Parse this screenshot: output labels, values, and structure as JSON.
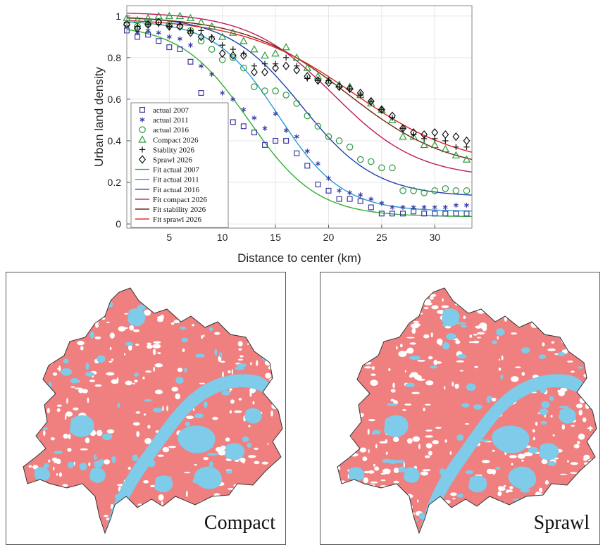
{
  "chart_data": {
    "type": "scatter",
    "xlabel": "Distance to center (km)",
    "ylabel": "Urban land density",
    "xlim": [
      1,
      33.5
    ],
    "ylim": [
      -0.02,
      1.05
    ],
    "xticks": [
      5,
      10,
      15,
      20,
      25,
      30
    ],
    "yticks": [
      0,
      0.2,
      0.4,
      0.6,
      0.8,
      1
    ],
    "grid": true,
    "legend_position": "bottom-left",
    "series": [
      {
        "name": "actual 2007",
        "kind": "points",
        "marker": "square",
        "color": "#3a3aa0",
        "x": [
          1,
          2,
          3,
          4,
          5,
          6,
          7,
          8,
          9,
          10,
          11,
          12,
          13,
          14,
          15,
          16,
          17,
          18,
          19,
          20,
          21,
          22,
          23,
          24,
          25,
          26,
          27,
          28,
          29,
          30,
          31,
          32,
          33
        ],
        "y": [
          0.93,
          0.9,
          0.91,
          0.88,
          0.85,
          0.84,
          0.78,
          0.63,
          0.56,
          0.5,
          0.49,
          0.47,
          0.44,
          0.38,
          0.4,
          0.4,
          0.34,
          0.28,
          0.19,
          0.16,
          0.12,
          0.12,
          0.11,
          0.08,
          0.05,
          0.05,
          0.05,
          0.06,
          0.05,
          0.05,
          0.05,
          0.05,
          0.05
        ]
      },
      {
        "name": "actual 2011",
        "kind": "points",
        "marker": "asterisk",
        "color": "#3a3aa0",
        "x": [
          1,
          2,
          3,
          4,
          5,
          6,
          7,
          8,
          9,
          10,
          11,
          12,
          13,
          14,
          15,
          16,
          17,
          18,
          19,
          20,
          21,
          22,
          23,
          24,
          25,
          26,
          27,
          28,
          29,
          30,
          31,
          32,
          33
        ],
        "y": [
          0.95,
          0.92,
          0.93,
          0.92,
          0.9,
          0.89,
          0.86,
          0.76,
          0.72,
          0.63,
          0.6,
          0.55,
          0.51,
          0.46,
          0.53,
          0.45,
          0.42,
          0.35,
          0.29,
          0.22,
          0.16,
          0.15,
          0.14,
          0.12,
          0.1,
          0.08,
          0.08,
          0.08,
          0.08,
          0.08,
          0.08,
          0.09,
          0.09
        ]
      },
      {
        "name": "actual 2016",
        "kind": "points",
        "marker": "circle",
        "color": "#2a9a3a",
        "x": [
          1,
          2,
          3,
          4,
          5,
          6,
          7,
          8,
          9,
          10,
          11,
          12,
          13,
          14,
          15,
          16,
          17,
          18,
          19,
          20,
          21,
          22,
          23,
          24,
          25,
          26,
          27,
          28,
          29,
          30,
          31,
          32,
          33
        ],
        "y": [
          0.96,
          0.95,
          0.96,
          0.97,
          0.96,
          0.95,
          0.93,
          0.88,
          0.84,
          0.79,
          0.8,
          0.75,
          0.66,
          0.64,
          0.64,
          0.62,
          0.58,
          0.52,
          0.47,
          0.42,
          0.4,
          0.37,
          0.31,
          0.3,
          0.27,
          0.27,
          0.16,
          0.16,
          0.15,
          0.16,
          0.17,
          0.16,
          0.16
        ]
      },
      {
        "name": "Compact 2026",
        "kind": "points",
        "marker": "triangle",
        "color": "#2a9a3a",
        "x": [
          1,
          2,
          3,
          4,
          5,
          6,
          7,
          8,
          9,
          10,
          11,
          12,
          13,
          14,
          15,
          16,
          17,
          18,
          19,
          20,
          21,
          22,
          23,
          24,
          25,
          26,
          27,
          28,
          29,
          30,
          31,
          32,
          33
        ],
        "y": [
          0.99,
          0.98,
          0.99,
          1.0,
          1.0,
          1.0,
          0.99,
          0.97,
          0.95,
          0.9,
          0.92,
          0.88,
          0.84,
          0.81,
          0.82,
          0.85,
          0.8,
          0.75,
          0.71,
          0.69,
          0.67,
          0.66,
          0.62,
          0.58,
          0.55,
          0.5,
          0.42,
          0.42,
          0.38,
          0.38,
          0.36,
          0.33,
          0.31
        ]
      },
      {
        "name": "Stablity 2026",
        "kind": "points",
        "marker": "plus",
        "color": "#111111",
        "x": [
          1,
          2,
          3,
          4,
          5,
          6,
          7,
          8,
          9,
          10,
          11,
          12,
          13,
          14,
          15,
          16,
          17,
          18,
          19,
          20,
          21,
          22,
          23,
          24,
          25,
          26,
          27,
          28,
          29,
          30,
          31,
          32,
          33
        ],
        "y": [
          0.97,
          0.95,
          0.96,
          0.96,
          0.95,
          0.96,
          0.93,
          0.93,
          0.9,
          0.86,
          0.84,
          0.82,
          0.76,
          0.77,
          0.77,
          0.8,
          0.76,
          0.7,
          0.69,
          0.69,
          0.66,
          0.65,
          0.62,
          0.59,
          0.55,
          0.51,
          0.46,
          0.43,
          0.41,
          0.41,
          0.4,
          0.37,
          0.37
        ]
      },
      {
        "name": "Sprawl 2026",
        "kind": "points",
        "marker": "diamond",
        "color": "#111111",
        "x": [
          1,
          2,
          3,
          4,
          5,
          6,
          7,
          8,
          9,
          10,
          11,
          12,
          13,
          14,
          15,
          16,
          17,
          18,
          19,
          20,
          21,
          22,
          23,
          24,
          25,
          26,
          27,
          28,
          29,
          30,
          31,
          32,
          33
        ],
        "y": [
          0.96,
          0.94,
          0.96,
          0.97,
          0.95,
          0.95,
          0.92,
          0.9,
          0.89,
          0.82,
          0.81,
          0.81,
          0.73,
          0.73,
          0.75,
          0.76,
          0.74,
          0.71,
          0.69,
          0.68,
          0.66,
          0.65,
          0.63,
          0.59,
          0.55,
          0.52,
          0.46,
          0.44,
          0.43,
          0.44,
          0.43,
          0.42,
          0.4
        ]
      },
      {
        "name": "Fit actual 2007",
        "kind": "fit",
        "color": "#2fb02f",
        "params": {
          "top": 0.96,
          "bottom": 0.035,
          "mid": 12.5,
          "width": 3.2
        }
      },
      {
        "name": "Fit actual 2011",
        "kind": "fit",
        "color": "#2a9ad8",
        "params": {
          "top": 0.98,
          "bottom": 0.06,
          "mid": 15.3,
          "width": 3.0
        }
      },
      {
        "name": "Fit actual 2016",
        "kind": "fit",
        "color": "#2040b0",
        "params": {
          "top": 1.0,
          "bottom": 0.13,
          "mid": 17.5,
          "width": 3.5
        }
      },
      {
        "name": "Fit compact 2026",
        "kind": "fit",
        "color": "#c0185a",
        "params": {
          "top": 1.02,
          "bottom": 0.22,
          "mid": 20.5,
          "width": 4.0
        }
      },
      {
        "name": "Fit stability  2026",
        "kind": "fit",
        "color": "#6b2a10",
        "params": {
          "top": 1.0,
          "bottom": 0.25,
          "mid": 21.8,
          "width": 4.8
        }
      },
      {
        "name": "Fit sprawl 2026",
        "kind": "fit",
        "color": "#e02020",
        "params": {
          "top": 0.99,
          "bottom": 0.27,
          "mid": 22.3,
          "width": 5.2
        }
      }
    ]
  },
  "maps": {
    "left_label": "Compact",
    "right_label": "Sprawl",
    "urban_color": "#f08080",
    "water_color": "#7ecbea",
    "outline_color": "#333333"
  }
}
